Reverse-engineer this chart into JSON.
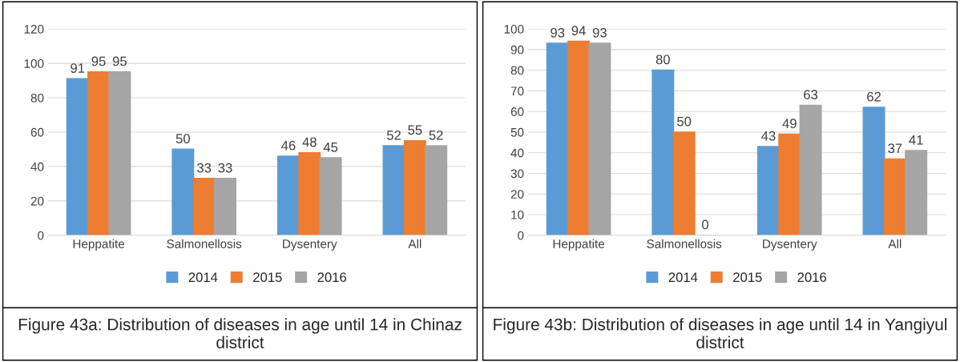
{
  "chart_data": [
    {
      "type": "bar",
      "title": "Figure 43a: Distribution of diseases in age until 14 in Chinaz district",
      "categories": [
        "Heppatite",
        "Salmonellosis",
        "Dysentery",
        "All"
      ],
      "series": [
        {
          "name": "2014",
          "color": "#5b9bd5",
          "values": [
            91,
            50,
            46,
            52
          ]
        },
        {
          "name": "2015",
          "color": "#ed7d31",
          "values": [
            95,
            33,
            48,
            55
          ]
        },
        {
          "name": "2016",
          "color": "#a5a5a5",
          "values": [
            95,
            33,
            45,
            52
          ]
        }
      ],
      "ylim": [
        0,
        120
      ],
      "yticks": [
        0,
        20,
        40,
        60,
        80,
        100,
        120
      ],
      "grid": "y",
      "legend": "bottom",
      "data_labels": true
    },
    {
      "type": "bar",
      "title": "Figure 43b: Distribution of diseases in age until 14 in Yangiyul district",
      "categories": [
        "Heppatite",
        "Salmonellosis",
        "Dysentery",
        "All"
      ],
      "series": [
        {
          "name": "2014",
          "color": "#5b9bd5",
          "values": [
            93,
            80,
            43,
            62
          ]
        },
        {
          "name": "2015",
          "color": "#ed7d31",
          "values": [
            94,
            50,
            49,
            37
          ]
        },
        {
          "name": "2016",
          "color": "#a5a5a5",
          "values": [
            93,
            0,
            63,
            41
          ]
        }
      ],
      "ylim": [
        0,
        100
      ],
      "yticks": [
        0,
        10,
        20,
        30,
        40,
        50,
        60,
        70,
        80,
        90,
        100
      ],
      "grid": "y",
      "legend": "bottom",
      "data_labels": true
    }
  ]
}
